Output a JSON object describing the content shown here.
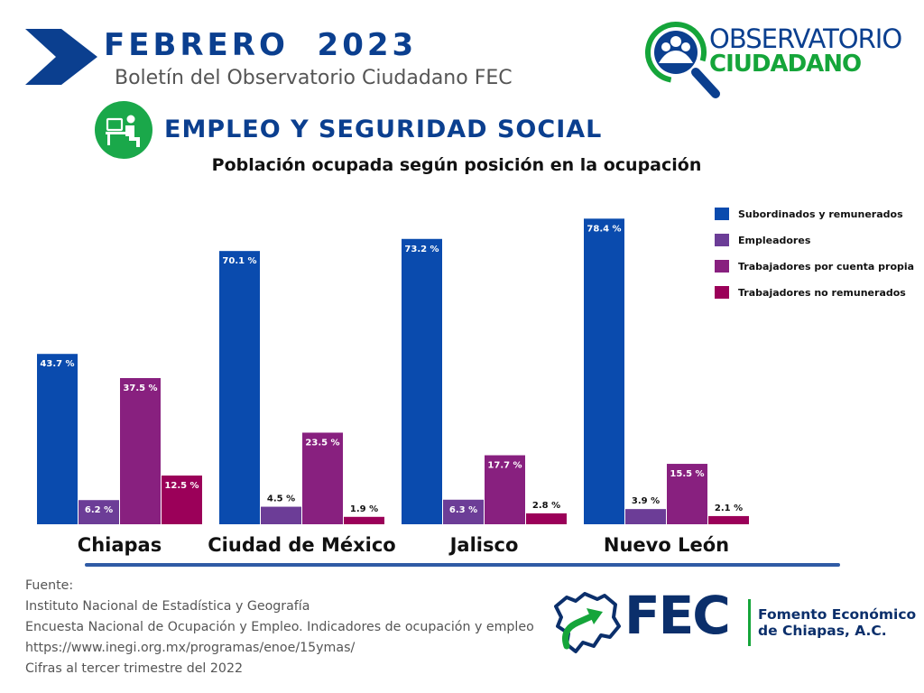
{
  "header": {
    "month_title": "FEBRERO  2023",
    "subtitle": "Boletín del Observatorio Ciudadano FEC",
    "section_title": "EMPLEO Y SEGURIDAD SOCIAL",
    "section_icon": "office-worker-desk-icon"
  },
  "logos": {
    "observatorio_line1": "OBSERVATORIO",
    "observatorio_line2": "CIUDADANO",
    "fec_wordmark": "FEC",
    "fec_name_line1": "Fomento Económico",
    "fec_name_line2": "de Chiapas, A.C."
  },
  "chart_data": {
    "type": "bar",
    "title": "Población ocupada según posición en la ocupación",
    "xlabel": "",
    "ylabel": "",
    "ylim": [
      0,
      80
    ],
    "grid": false,
    "legend_position": "top-right",
    "value_suffix": " %",
    "categories": [
      "Chiapas",
      "Ciudad de México",
      "Jalisco",
      "Nuevo León"
    ],
    "series": [
      {
        "name": "Subordinados y remunerados",
        "color": "#0a4bae",
        "values": [
          43.7,
          70.1,
          73.2,
          78.4
        ]
      },
      {
        "name": "Empleadores",
        "color": "#6c3d97",
        "values": [
          6.2,
          4.5,
          6.3,
          3.9
        ]
      },
      {
        "name": "Trabajadores por cuenta propia",
        "color": "#88207f",
        "values": [
          37.5,
          23.5,
          17.7,
          15.5
        ]
      },
      {
        "name": "Trabajadores no remunerados",
        "color": "#9b0059",
        "values": [
          12.5,
          1.9,
          2.8,
          2.1
        ]
      }
    ]
  },
  "source": {
    "lines": [
      "Fuente:",
      "Instituto Nacional de Estadística y Geografía",
      "Encuesta Nacional de Ocupación y Empleo. Indicadores de ocupación y empleo",
      "https://www.inegi.org.mx/programas/enoe/15ymas/",
      "Cifras al tercer trimestre del 2022"
    ]
  },
  "colors": {
    "brand_blue": "#0b3f8f",
    "brand_green": "#15a53a",
    "divider_blue": "#2f5ba5"
  }
}
